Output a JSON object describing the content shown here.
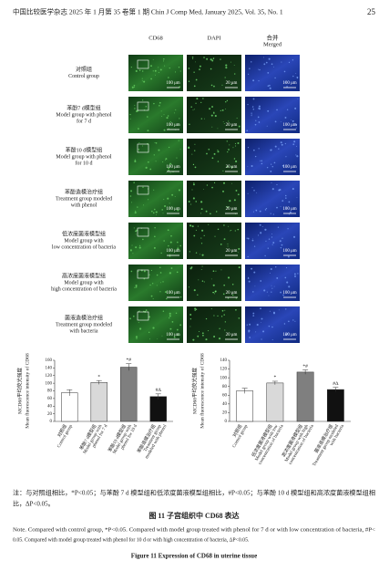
{
  "header": {
    "journal": "中国比较医学杂志 2025 年 1 月第 35 卷第 1 期   Chin J Comp Med, January 2025, Vol. 35, No. 1",
    "page": "25"
  },
  "figure": {
    "columns": [
      [
        "CD68"
      ],
      [
        "DAPI"
      ],
      [
        "合并",
        "Merged"
      ]
    ],
    "rows": [
      {
        "label": [
          "对照组",
          "Control group"
        ],
        "scales": [
          "100 μm",
          "20 μm",
          "100 μm"
        ]
      },
      {
        "label": [
          "苯酚7 d模型组",
          "Model group with phenol",
          "for 7 d"
        ],
        "scales": [
          "100 μm",
          "20 μm",
          "100 μm"
        ]
      },
      {
        "label": [
          "苯酚10 d模型组",
          "Model group with phenol",
          "for 10 d"
        ],
        "scales": [
          "100 μm",
          "20 μm",
          "100 μm"
        ]
      },
      {
        "label": [
          "苯酚造模治疗组",
          "Treatment group modeled",
          "with phenol"
        ],
        "scales": [
          "100 μm",
          "20 μm",
          "100 μm"
        ]
      },
      {
        "label": [
          "低浓度菌液模型组",
          "Model group with",
          "low concentration of bacteria"
        ],
        "scales": [
          "100 μm",
          "20 μm",
          "100 μm"
        ]
      },
      {
        "label": [
          "高浓度菌液模型组",
          "Model group with",
          "high concentration of bacteria"
        ],
        "scales": [
          "100 μm",
          "20 μm",
          "100 μm"
        ]
      },
      {
        "label": [
          "菌液造模治疗组",
          "Treatment group modeled",
          "with bacteria"
        ],
        "scales": [
          "100 μm",
          "20 μm",
          "100 μm"
        ]
      }
    ]
  },
  "chart_data": [
    {
      "type": "bar",
      "y_label": [
        "MCD68平均荧光强度",
        "Mean fluorescence intensity of CD68"
      ],
      "categories": [
        [
          "对照组",
          "Control group"
        ],
        [
          "苯酚7 d模型组",
          "Model group with",
          "phenol for 7 d"
        ],
        [
          "苯酚10 d模型组",
          "Model group with",
          "phenol for 10 d"
        ],
        [
          "苯酚造模治疗组",
          "Treatment group",
          "modeled with phenol"
        ]
      ],
      "values": [
        75,
        102,
        142,
        65
      ],
      "errors": [
        8,
        5,
        9,
        7
      ],
      "annotations": [
        null,
        "*",
        "*#",
        "#Δ"
      ],
      "colors": [
        "#ffffff",
        "#d9d9d9",
        "#7f7f7f",
        "#111111"
      ],
      "ylim": [
        0,
        160
      ],
      "yticks": [
        0,
        20,
        40,
        60,
        80,
        100,
        120,
        140,
        160
      ]
    },
    {
      "type": "bar",
      "y_label": [
        "MCD68平均荧光强度",
        "Mean fluorescence intensity of CD68"
      ],
      "categories": [
        [
          "对照组",
          "Control group"
        ],
        [
          "低浓度菌液模型组",
          "Model group with low",
          "concentration of bacteria"
        ],
        [
          "高浓度菌液模型组",
          "Model group with high",
          "concentration of bacteria"
        ],
        [
          "菌液造模治疗组",
          "Treatment group modeled",
          "with bacteria"
        ]
      ],
      "values": [
        70,
        88,
        113,
        73
      ],
      "errors": [
        6,
        4,
        5,
        5
      ],
      "annotations": [
        null,
        "*",
        "*#",
        "#Δ"
      ],
      "colors": [
        "#ffffff",
        "#d9d9d9",
        "#7f7f7f",
        "#111111"
      ],
      "ylim": [
        0,
        140
      ],
      "yticks": [
        0,
        20,
        40,
        60,
        80,
        100,
        120,
        140
      ]
    }
  ],
  "notes": {
    "cn": [
      "注：与对照组相比，*P<0.05；与苯酚 7 d 模型组和低浓度菌液模型组相比，#P<0.05；与苯酚 10 d 模型组和高浓度菌液模型组相",
      "比，ΔP<0.05。"
    ],
    "figure_cn": "图 11   子宫组织中 CD68 表达",
    "en": [
      "Note. Compared with control group, *P<0.05. Compared with model group treated with phenol for 7 d or with low concentration of bacteria, #P<",
      "0.05. Compared with model group treated with phenol for 10 d or with high concentration of bacteria, ΔP<0.05."
    ],
    "figure_en": "Figure 11   Expression of CD68 in uterine tissue"
  }
}
